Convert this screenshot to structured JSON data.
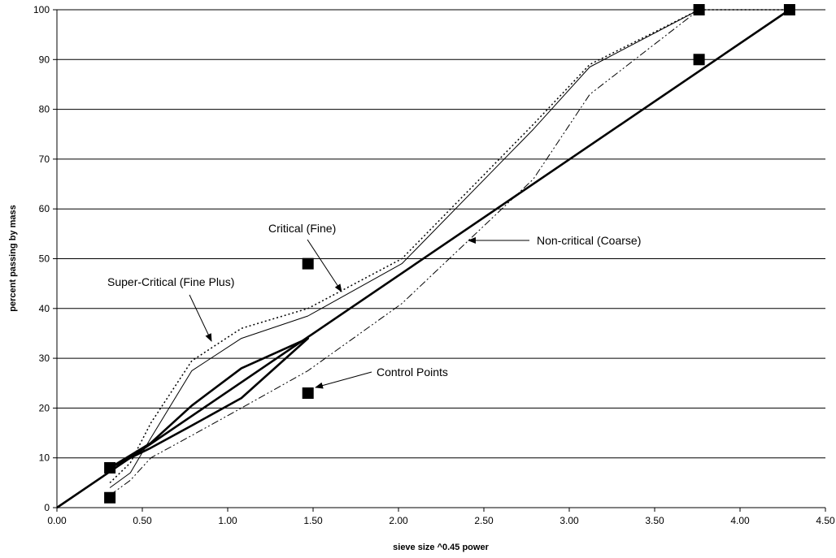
{
  "chart_data": {
    "type": "line",
    "title": "",
    "xlabel": "sieve size ^0.45 power",
    "ylabel": "percent passing by mass",
    "xlim": [
      0,
      4.5
    ],
    "ylim": [
      0,
      100
    ],
    "x_ticks": [
      "0.00",
      "0.50",
      "1.00",
      "1.50",
      "2.00",
      "2.50",
      "3.00",
      "3.50",
      "4.00",
      "4.50"
    ],
    "y_ticks": [
      "0",
      "10",
      "20",
      "30",
      "40",
      "50",
      "60",
      "70",
      "80",
      "90",
      "100"
    ],
    "grid": "horizontal",
    "series": [
      {
        "style": "thick-solid",
        "x": [
          0,
          4.29
        ],
        "y": [
          0,
          100
        ]
      },
      {
        "style": "thick-solid",
        "x": [
          0.31,
          0.55,
          0.79,
          1.08,
          1.47,
          1.08,
          0.79,
          0.55,
          0.31
        ],
        "y": [
          8,
          12,
          16.5,
          22,
          34,
          28,
          20.5,
          13,
          8
        ]
      },
      {
        "name": "Critical (Fine)",
        "style": "thin-solid",
        "x": [
          0.31,
          0.43,
          0.55,
          0.79,
          1.08,
          1.47,
          2.02,
          2.79,
          3.12,
          3.76,
          4.29
        ],
        "y": [
          4,
          7,
          14,
          27.5,
          34,
          38.5,
          49,
          76,
          88.5,
          100,
          100
        ]
      },
      {
        "name": "Super-Critical (Fine Plus)",
        "style": "dotted",
        "x": [
          0.31,
          0.43,
          0.55,
          0.79,
          1.08,
          1.47,
          2.02,
          2.79,
          3.12,
          3.76,
          4.29
        ],
        "y": [
          5,
          9,
          17,
          29.5,
          36,
          40,
          50,
          77,
          89,
          100,
          100
        ]
      },
      {
        "name": "Non-critical (Coarse)",
        "style": "dash-dot-dot",
        "x": [
          0.31,
          0.43,
          0.55,
          0.79,
          1.08,
          1.47,
          2.02,
          2.79,
          3.12,
          3.76,
          4.29
        ],
        "y": [
          2.5,
          5.5,
          10,
          14.5,
          20,
          27.5,
          41,
          66,
          83,
          100,
          100
        ]
      }
    ],
    "control_points": {
      "name": "Control Points",
      "x": [
        0.31,
        0.31,
        1.47,
        1.47,
        3.76,
        3.76,
        4.29
      ],
      "y": [
        2,
        8,
        23,
        49,
        90,
        100,
        100
      ]
    },
    "annotations": [
      {
        "text": "Critical (Fine)",
        "anchor": "critical"
      },
      {
        "text": "Super-Critical (Fine Plus)",
        "anchor": "super"
      },
      {
        "text": "Non-critical (Coarse)",
        "anchor": "noncritical"
      },
      {
        "text": "Control Points",
        "anchor": "control"
      }
    ]
  }
}
